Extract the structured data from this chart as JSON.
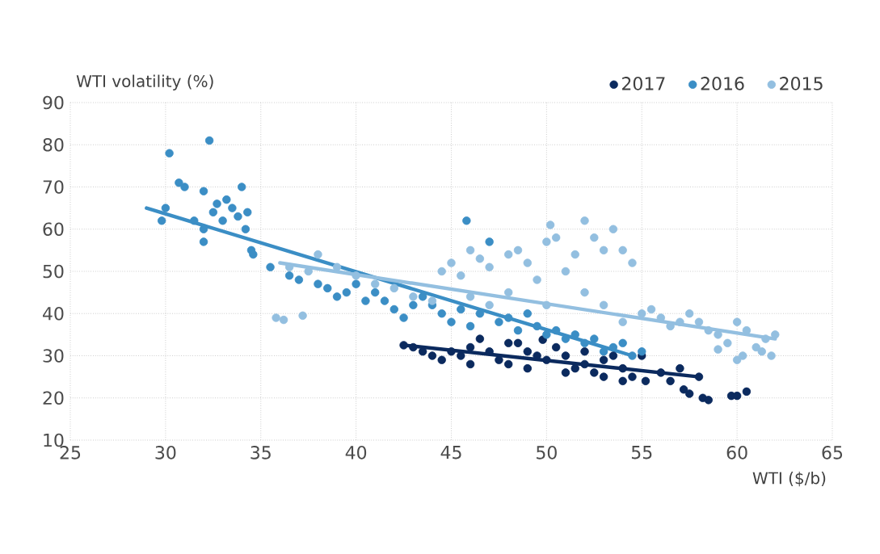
{
  "chart_data": {
    "type": "scatter",
    "xlabel": "WTI ($/b)",
    "ylabel": "WTI volatility (%)",
    "xlim": [
      25,
      65
    ],
    "ylim": [
      10,
      90
    ],
    "xticks": [
      25,
      30,
      35,
      40,
      45,
      50,
      55,
      60,
      65
    ],
    "yticks": [
      10,
      20,
      30,
      40,
      50,
      60,
      70,
      80,
      90
    ],
    "grid": true,
    "legend": "top right",
    "marker": "circle",
    "series": [
      {
        "name": "2017",
        "color": "#0b2a5e",
        "x": [
          42.5,
          43,
          43.5,
          44,
          44.5,
          45,
          45.5,
          46,
          46.5,
          47,
          47.5,
          48,
          48.5,
          49,
          49.5,
          50,
          50.5,
          51,
          51.5,
          52,
          52.5,
          53,
          53.5,
          54,
          54.5,
          55,
          55.2,
          56,
          56.5,
          57,
          57.2,
          57.5,
          58,
          58.2,
          58.5,
          59.7,
          60,
          60.5,
          48,
          49.8,
          51,
          52,
          53,
          54,
          49,
          46
        ],
        "values": [
          32.5,
          32,
          31,
          30,
          29,
          31,
          30,
          32,
          34,
          31,
          29,
          28,
          33,
          31,
          30,
          29,
          32,
          30,
          27,
          28,
          26,
          29,
          30,
          27,
          25,
          30,
          24,
          26,
          24,
          27,
          22,
          21,
          25,
          20,
          19.5,
          20.5,
          20.5,
          21.5,
          33,
          33.8,
          26,
          31,
          25,
          24,
          27,
          28
        ]
      },
      {
        "name": "2016",
        "color": "#3b8ec5",
        "x": [
          29.8,
          30,
          30.2,
          30.7,
          31,
          31.5,
          32,
          32,
          32,
          32.3,
          32.5,
          32.7,
          33,
          33.2,
          33.5,
          33.8,
          34,
          34.2,
          34.3,
          34.5,
          34.6,
          35.5,
          36.5,
          37,
          38,
          38.5,
          39,
          39.5,
          40,
          40.5,
          41,
          41.5,
          42,
          42.5,
          43,
          43.5,
          44,
          44.5,
          45,
          45.5,
          45.8,
          46,
          46.5,
          47,
          47.5,
          48,
          48.5,
          49,
          49.5,
          50,
          50.5,
          51,
          51.5,
          52,
          52.5,
          53,
          53.5,
          54,
          54.5,
          55
        ],
        "values": [
          62,
          65,
          78,
          71,
          70,
          62,
          57,
          60,
          69,
          81,
          64,
          66,
          62,
          67,
          65,
          63,
          70,
          60,
          64,
          55,
          54,
          51,
          49,
          48,
          47,
          46,
          44,
          45,
          47,
          43,
          45,
          43,
          41,
          39,
          42,
          44,
          42,
          40,
          38,
          41,
          62,
          37,
          40,
          57,
          38,
          39,
          36,
          40,
          37,
          35,
          36,
          34,
          35,
          33,
          34,
          31,
          32,
          33,
          30,
          31
        ]
      },
      {
        "name": "2015",
        "color": "#93bfe0",
        "x": [
          35.8,
          36.2,
          37.2,
          36.5,
          37.5,
          38,
          39,
          40,
          41,
          42,
          43,
          44,
          44.5,
          45,
          45.5,
          46,
          46.5,
          47,
          48,
          48.5,
          49,
          49.5,
          50,
          50.2,
          50.5,
          51,
          51.5,
          52,
          52.5,
          53,
          53.5,
          54,
          54.5,
          55,
          55.5,
          56,
          57,
          57.5,
          58,
          58.5,
          59,
          59.5,
          60,
          60,
          60.5,
          61,
          61.3,
          61.5,
          62,
          52,
          53,
          54,
          56.5,
          59,
          60.3,
          61.8,
          47,
          48,
          50,
          46
        ],
        "values": [
          39,
          38.5,
          39.5,
          51,
          50,
          54,
          51,
          49,
          47,
          46,
          44,
          43,
          50,
          52,
          49,
          55,
          53,
          51,
          54,
          55,
          52,
          48,
          57,
          61,
          58,
          50,
          54,
          62,
          58,
          55,
          60,
          55,
          52,
          40,
          41,
          39,
          38,
          40,
          38,
          36,
          35,
          33,
          29,
          38,
          36,
          32,
          31,
          34,
          35,
          45,
          42,
          38,
          37,
          31.5,
          30,
          30,
          42,
          45,
          42,
          44
        ]
      },
      {
        "type": "line",
        "marker": "none",
        "color": "#0b2a5e",
        "x": [
          42.5,
          58
        ],
        "values": [
          32.5,
          25
        ]
      },
      {
        "type": "line",
        "marker": "none",
        "color": "#3b8ec5",
        "x": [
          29,
          54.5
        ],
        "values": [
          65,
          30
        ]
      },
      {
        "type": "line",
        "marker": "none",
        "color": "#93bfe0",
        "x": [
          36,
          62
        ],
        "values": [
          52,
          34
        ]
      }
    ]
  }
}
